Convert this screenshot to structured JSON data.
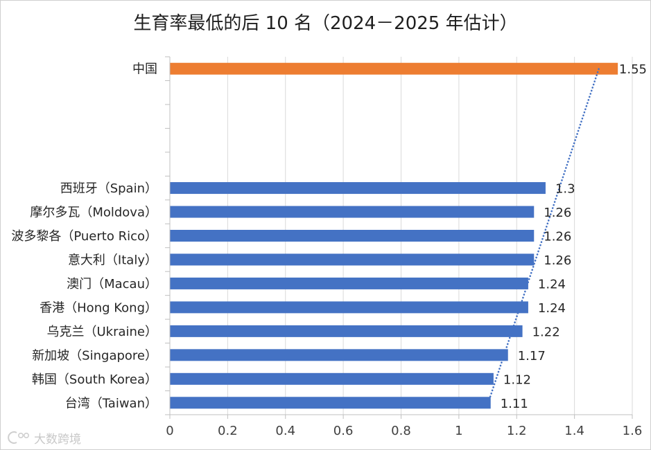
{
  "chart_data": {
    "type": "bar",
    "orientation": "horizontal",
    "title": "生育率最低的后 10 名（2024－2025 年估计）",
    "categories": [
      "台湾（Taiwan）",
      "韩国（South Korea）",
      "新加坡（Singapore）",
      "乌克兰（Ukraine）",
      "香港（Hong Kong）",
      "澳门（Macau）",
      "意大利（Italy）",
      "波多黎各（Puerto Rico）",
      "摩尔多瓦（Moldova）",
      "西班牙（Spain）",
      "",
      "",
      "",
      "",
      "中国"
    ],
    "values": [
      1.11,
      1.12,
      1.17,
      1.22,
      1.24,
      1.24,
      1.26,
      1.26,
      1.26,
      1.3,
      null,
      null,
      null,
      null,
      1.55
    ],
    "highlight": "中国",
    "colors": {
      "default": "#4472C4",
      "highlight": "#ED7D31",
      "trendline": "#4472C4",
      "grid": "#D9D9D9",
      "axis": "#BFBFBF"
    },
    "xlim": [
      0,
      1.6
    ],
    "xticks": [
      0,
      0.2,
      0.4,
      0.6,
      0.8,
      1,
      1.2,
      1.4,
      1.6
    ],
    "data_labels": true,
    "trendline": "linear",
    "grid": true,
    "legend": "none",
    "xlabel": "",
    "ylabel": ""
  },
  "watermark": "大数跨境"
}
